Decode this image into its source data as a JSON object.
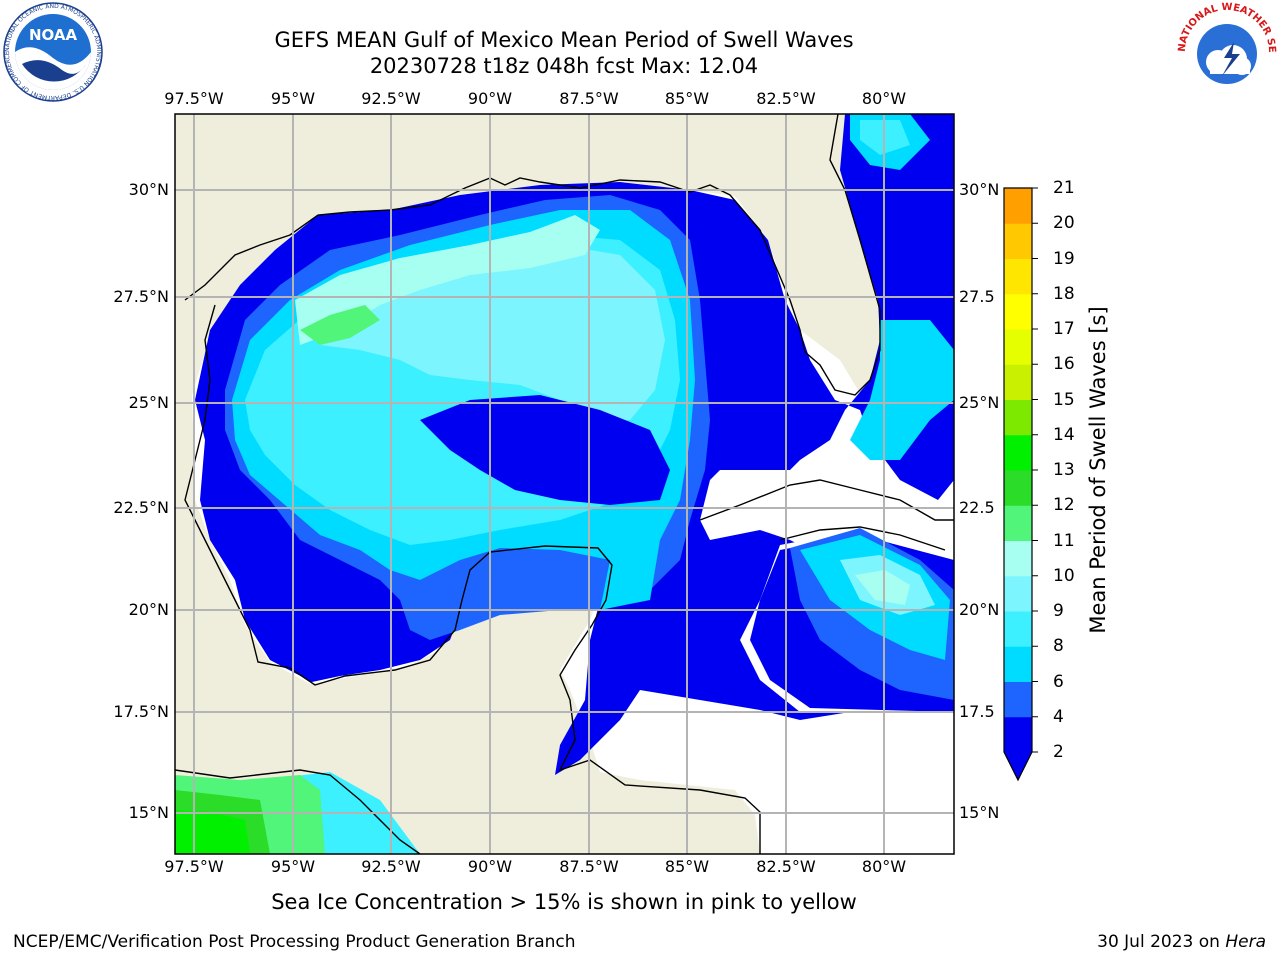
{
  "header": {
    "title": "GEFS MEAN Gulf of Mexico Mean Period of Swell Waves",
    "subtitle": "20230728 t18z 048h fcst   Max: 12.04"
  },
  "logos": {
    "noaa_text": "NOAA",
    "noaa_ring": "NATIONAL OCEANIC AND ATMOSPHERIC ADMINISTRATION  U.S. DEPARTMENT OF COMMERCE",
    "nws_ring": "NATIONAL WEATHER SERVICE"
  },
  "map": {
    "lon_labels": [
      "97.5°W",
      "95°W",
      "92.5°W",
      "90°W",
      "87.5°W",
      "85°W",
      "82.5°W",
      "80°W"
    ],
    "lat_labels_left": [
      "30°N",
      "27.5°N",
      "25°N",
      "22.5°N",
      "20°N",
      "17.5°N",
      "15°N"
    ],
    "lat_labels_right": [
      "30°N",
      "27.5",
      "25°N",
      "22.5",
      "20°N",
      "17.5",
      "15°N"
    ],
    "colors": {
      "land": "#efeedc",
      "no_data": "#ffffff",
      "grid": "#b4b4b4",
      "coast": "#000000"
    }
  },
  "colorbar": {
    "label": "Mean Period of Swell Waves [s]",
    "ticks": [
      "21",
      "20",
      "19",
      "18",
      "17",
      "16",
      "15",
      "14",
      "13",
      "12",
      "11",
      "10",
      "9",
      "8",
      "6",
      "4",
      "2"
    ],
    "colors": [
      "#0000f0",
      "#1e64ff",
      "#00dcff",
      "#3cf0ff",
      "#7df5ff",
      "#a6fff0",
      "#50f57a",
      "#2bdc28",
      "#00f000",
      "#7de800",
      "#c8f000",
      "#e6ff00",
      "#ffff00",
      "#ffe600",
      "#ffc800",
      "#ffa000",
      "#ff7d00",
      "#ff5000",
      "#ff2800",
      "#ff0000"
    ]
  },
  "footer": {
    "note": "Sea Ice Concentration > 15% is shown in pink to yellow",
    "credit": "NCEP/EMC/Verification Post Processing Product Generation Branch",
    "date": "30 Jul 2023",
    "on": "on",
    "host": "Hera"
  }
}
